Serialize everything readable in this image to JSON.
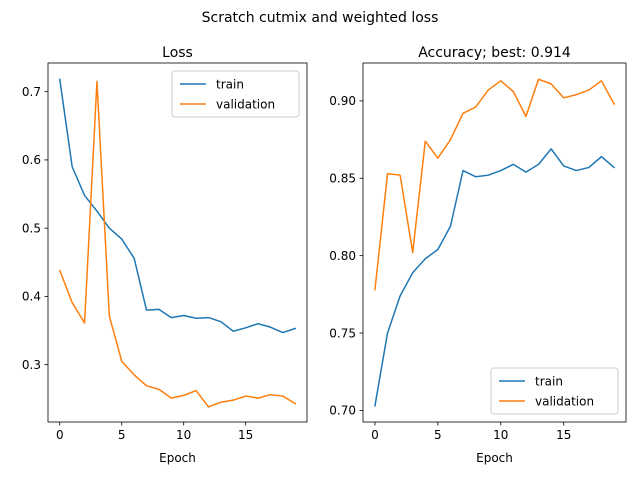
{
  "figure": {
    "title": "Scratch cutmix and weighted loss"
  },
  "chart_data": [
    {
      "type": "line",
      "title": "Loss",
      "xlabel": "Epoch",
      "ylabel": "",
      "xlim": [
        -0.95,
        19.95
      ],
      "ylim": [
        0.216,
        0.742
      ],
      "xticks": [
        0,
        5,
        10,
        15
      ],
      "yticks": [
        0.3,
        0.4,
        0.5,
        0.6,
        0.7
      ],
      "ytick_labels": [
        "0.3",
        "0.4",
        "0.5",
        "0.6",
        "0.7"
      ],
      "legend_position": "upper right",
      "x": [
        0,
        1,
        2,
        3,
        4,
        5,
        6,
        7,
        8,
        9,
        10,
        11,
        12,
        13,
        14,
        15,
        16,
        17,
        18,
        19
      ],
      "series": [
        {
          "name": "train",
          "color": "#1f77b4",
          "values": [
            0.718,
            0.59,
            0.548,
            0.525,
            0.5,
            0.484,
            0.456,
            0.38,
            0.381,
            0.369,
            0.372,
            0.368,
            0.369,
            0.363,
            0.349,
            0.354,
            0.36,
            0.355,
            0.347,
            0.353
          ]
        },
        {
          "name": "validation",
          "color": "#ff7f0e",
          "values": [
            0.438,
            0.391,
            0.361,
            0.715,
            0.371,
            0.305,
            0.285,
            0.269,
            0.264,
            0.251,
            0.255,
            0.262,
            0.238,
            0.245,
            0.248,
            0.254,
            0.251,
            0.256,
            0.254,
            0.243
          ]
        }
      ]
    },
    {
      "type": "line",
      "title": "Accuracy; best: 0.914",
      "xlabel": "Epoch",
      "ylabel": "",
      "xlim": [
        -0.95,
        19.95
      ],
      "ylim": [
        0.6925,
        0.9245
      ],
      "xticks": [
        0,
        5,
        10,
        15
      ],
      "yticks": [
        0.7,
        0.75,
        0.8,
        0.85,
        0.9
      ],
      "ytick_labels": [
        "0.70",
        "0.75",
        "0.80",
        "0.85",
        "0.90"
      ],
      "legend_position": "lower right",
      "x": [
        0,
        1,
        2,
        3,
        4,
        5,
        6,
        7,
        8,
        9,
        10,
        11,
        12,
        13,
        14,
        15,
        16,
        17,
        18,
        19
      ],
      "series": [
        {
          "name": "train",
          "color": "#1f77b4",
          "values": [
            0.703,
            0.75,
            0.774,
            0.789,
            0.798,
            0.804,
            0.819,
            0.855,
            0.851,
            0.852,
            0.855,
            0.859,
            0.854,
            0.859,
            0.869,
            0.858,
            0.855,
            0.857,
            0.864,
            0.857
          ]
        },
        {
          "name": "validation",
          "color": "#ff7f0e",
          "values": [
            0.778,
            0.853,
            0.852,
            0.802,
            0.874,
            0.863,
            0.875,
            0.892,
            0.896,
            0.907,
            0.913,
            0.906,
            0.89,
            0.914,
            0.911,
            0.902,
            0.904,
            0.907,
            0.913,
            0.898
          ]
        }
      ]
    }
  ]
}
